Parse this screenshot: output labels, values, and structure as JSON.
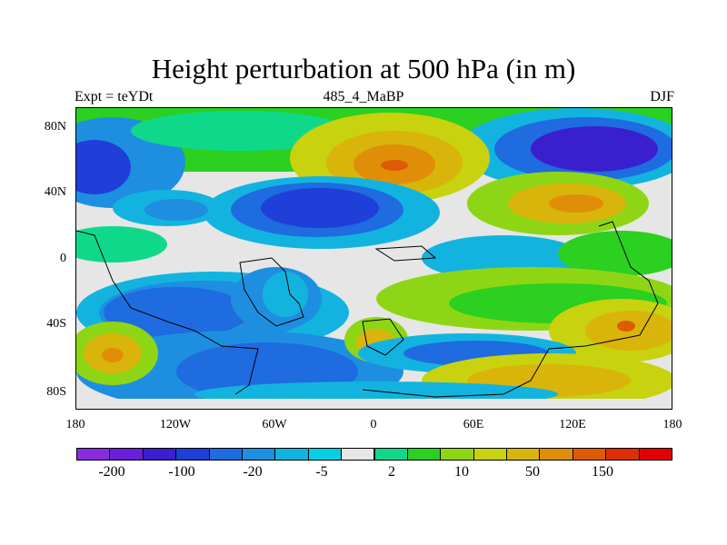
{
  "figure": {
    "title": "Height perturbation at 500 hPa (in m)",
    "left_label": "Expt = teYDt",
    "center_label": "485_4_MaBP",
    "right_label": "DJF"
  },
  "axes": {
    "lat_ticks": [
      "80N",
      "40N",
      "0",
      "40S",
      "80S"
    ],
    "lon_ticks": [
      "180",
      "120W",
      "60W",
      "0",
      "60E",
      "120E",
      "180"
    ]
  },
  "colorbar": {
    "colors": [
      "#8a2be2",
      "#6a1fd9",
      "#3a1fcf",
      "#1f3fd9",
      "#1f6be0",
      "#1e8fe0",
      "#12b4df",
      "#06cfe4",
      "#e6e6e6",
      "#10d88b",
      "#2bd020",
      "#8ed615",
      "#c8d20e",
      "#d9b40b",
      "#e08e08",
      "#e05a06",
      "#e02e04",
      "#e00000"
    ],
    "labels": [
      "-200",
      "-100",
      "-20",
      "-5",
      "2",
      "10",
      "50",
      "150"
    ]
  }
}
